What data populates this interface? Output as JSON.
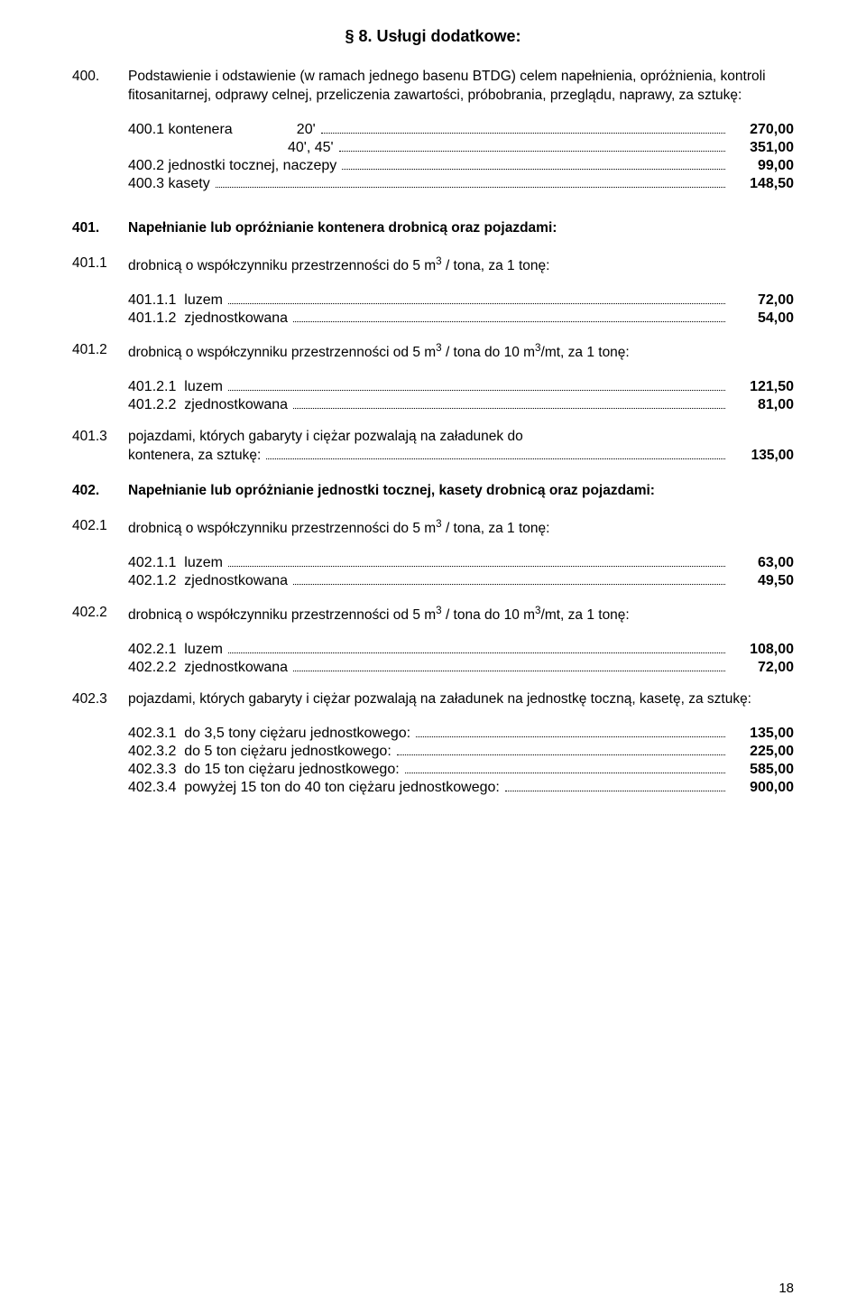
{
  "title": "§ 8. Usługi dodatkowe:",
  "sec400": {
    "num": "400.",
    "text": "Podstawienie i odstawienie (w ramach jednego basenu BTDG) celem napełnienia, opróżnienia, kontroli fitosanitarnej, odprawy celnej, przeliczenia zawartości, próbobrania, przeglądu, naprawy, za sztukę:",
    "r1": {
      "num": "400.1",
      "label": "kontenera",
      "sub1": "20'",
      "v1": "270,00",
      "sub2": "40', 45'",
      "v2": "351,00"
    },
    "r2": {
      "num": "400.2",
      "label": "jednostki tocznej, naczepy",
      "v": "99,00"
    },
    "r3": {
      "num": "400.3",
      "label": "kasety",
      "v": "148,50"
    }
  },
  "sec401": {
    "num": "401.",
    "title": "Napełnianie lub opróżnianie kontenera drobnicą oraz pojazdami:",
    "s1": {
      "num": "401.1",
      "text": "drobnicą o współczynniku przestrzenności do 5 m",
      "sup": "3",
      "tail": " / tona, za 1 tonę:",
      "r1": {
        "num": "401.1.1",
        "label": "luzem",
        "v": "72,00"
      },
      "r2": {
        "num": "401.1.2",
        "label": "zjednostkowana",
        "v": "54,00"
      }
    },
    "s2": {
      "num": "401.2",
      "text1": "drobnicą o współczynniku przestrzenności od 5 m",
      "sup1": "3",
      "text2": " / tona do 10 m",
      "sup2": "3",
      "text3": "/mt, za 1 tonę:",
      "r1": {
        "num": "401.2.1",
        "label": "luzem",
        "v": "121,50"
      },
      "r2": {
        "num": "401.2.2",
        "label": "zjednostkowana",
        "v": "81,00"
      }
    },
    "s3": {
      "num": "401.3",
      "text": "pojazdami, których gabaryty i ciężar pozwalają na załadunek do kontenera, za  sztukę:",
      "v": "135,00"
    }
  },
  "sec402": {
    "num": "402.",
    "title": "Napełnianie lub opróżnianie jednostki tocznej, kasety drobnicą oraz pojazdami:",
    "s1": {
      "num": "402.1",
      "text": "drobnicą o współczynniku przestrzenności do 5 m",
      "sup": "3",
      "tail": " / tona, za 1 tonę:",
      "r1": {
        "num": "402.1.1",
        "label": "luzem",
        "v": "63,00"
      },
      "r2": {
        "num": "402.1.2",
        "label": "zjednostkowana",
        "v": "49,50"
      }
    },
    "s2": {
      "num": "402.2",
      "text1": "drobnicą o współczynniku przestrzenności od 5 m",
      "sup1": "3",
      "text2": " / tona do 10 m",
      "sup2": "3",
      "text3": "/mt, za 1 tonę:",
      "r1": {
        "num": "402.2.1",
        "label": "luzem",
        "v": "108,00"
      },
      "r2": {
        "num": "402.2.2",
        "label": "zjednostkowana",
        "v": "72,00"
      }
    },
    "s3": {
      "num": "402.3",
      "text": "pojazdami, których gabaryty i ciężar pozwalają na załadunek na jednostkę toczną, kasetę, za sztukę:",
      "r1": {
        "num": "402.3.1",
        "label": "do 3,5 tony ciężaru jednostkowego:",
        "v": "135,00"
      },
      "r2": {
        "num": "402.3.2",
        "label": "do 5 ton ciężaru jednostkowego:",
        "v": "225,00"
      },
      "r3": {
        "num": "402.3.3",
        "label": "do 15 ton ciężaru jednostkowego:",
        "v": "585,00"
      },
      "r4": {
        "num": "402.3.4",
        "label": "powyżej 15 ton do 40 ton ciężaru jednostkowego:",
        "v": "900,00"
      }
    }
  },
  "page": "18"
}
